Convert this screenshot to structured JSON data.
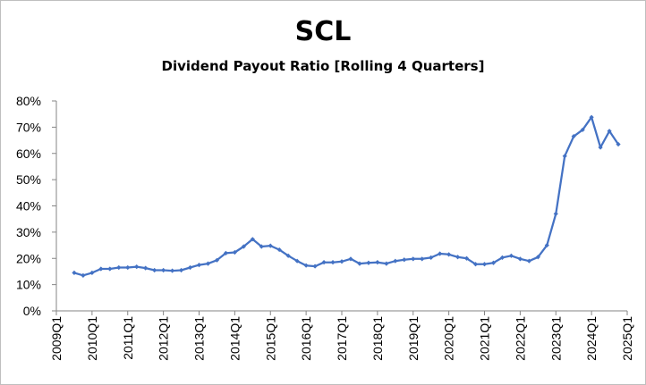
{
  "chart_data": {
    "type": "line",
    "title": "SCL",
    "subtitle": "Dividend Payout Ratio [Rolling 4 Quarters]",
    "xlabel": "",
    "ylabel": "",
    "y_ticks": [
      "0%",
      "10%",
      "20%",
      "30%",
      "40%",
      "50%",
      "60%",
      "70%",
      "80%"
    ],
    "x_ticks": [
      "2009Q1",
      "2010Q1",
      "2011Q1",
      "2012Q1",
      "2013Q1",
      "2014Q1",
      "2015Q1",
      "2016Q1",
      "2017Q1",
      "2018Q1",
      "2019Q1",
      "2020Q1",
      "2021Q1",
      "2022Q1",
      "2023Q1",
      "2024Q1",
      "2025Q1"
    ],
    "ylim": [
      0,
      80
    ],
    "grid": false,
    "legend": "none",
    "series_color": "#4472C4",
    "series": [
      {
        "x": [
          "2009Q3",
          "2009Q4",
          "2010Q1",
          "2010Q2",
          "2010Q3",
          "2010Q4",
          "2011Q1",
          "2011Q2",
          "2011Q3",
          "2011Q4",
          "2012Q1",
          "2012Q2",
          "2012Q3",
          "2012Q4",
          "2013Q1",
          "2013Q2",
          "2013Q3",
          "2013Q4",
          "2014Q1",
          "2014Q2",
          "2014Q3",
          "2014Q4",
          "2015Q1",
          "2015Q2",
          "2015Q3",
          "2015Q4",
          "2016Q1",
          "2016Q2",
          "2016Q3",
          "2016Q4",
          "2017Q1",
          "2017Q2",
          "2017Q3",
          "2017Q4",
          "2018Q1",
          "2018Q2",
          "2018Q3",
          "2018Q4",
          "2019Q1",
          "2019Q2",
          "2019Q3",
          "2019Q4",
          "2020Q1",
          "2020Q2",
          "2020Q3",
          "2020Q4",
          "2021Q1",
          "2021Q2",
          "2021Q3",
          "2021Q4",
          "2022Q1",
          "2022Q2",
          "2022Q3",
          "2022Q4",
          "2023Q1",
          "2023Q2",
          "2023Q3",
          "2023Q4",
          "2024Q1",
          "2024Q2",
          "2024Q3",
          "2024Q4"
        ],
        "values": [
          14.5,
          13.5,
          14.5,
          16.0,
          16.0,
          16.5,
          16.5,
          16.8,
          16.3,
          15.5,
          15.5,
          15.3,
          15.5,
          16.5,
          17.5,
          18.0,
          19.3,
          22.0,
          22.3,
          24.5,
          27.3,
          24.5,
          24.8,
          23.3,
          21.0,
          19.0,
          17.3,
          17.0,
          18.5,
          18.5,
          18.8,
          19.8,
          18.0,
          18.3,
          18.5,
          18.0,
          19.0,
          19.5,
          19.8,
          19.8,
          20.3,
          21.8,
          21.5,
          20.5,
          20.0,
          17.8,
          17.8,
          18.3,
          20.3,
          21.0,
          19.8,
          19.0,
          20.5,
          25.0,
          37.0,
          59.0,
          66.5,
          69.0,
          73.8,
          62.3,
          68.5,
          63.5
        ]
      }
    ]
  }
}
